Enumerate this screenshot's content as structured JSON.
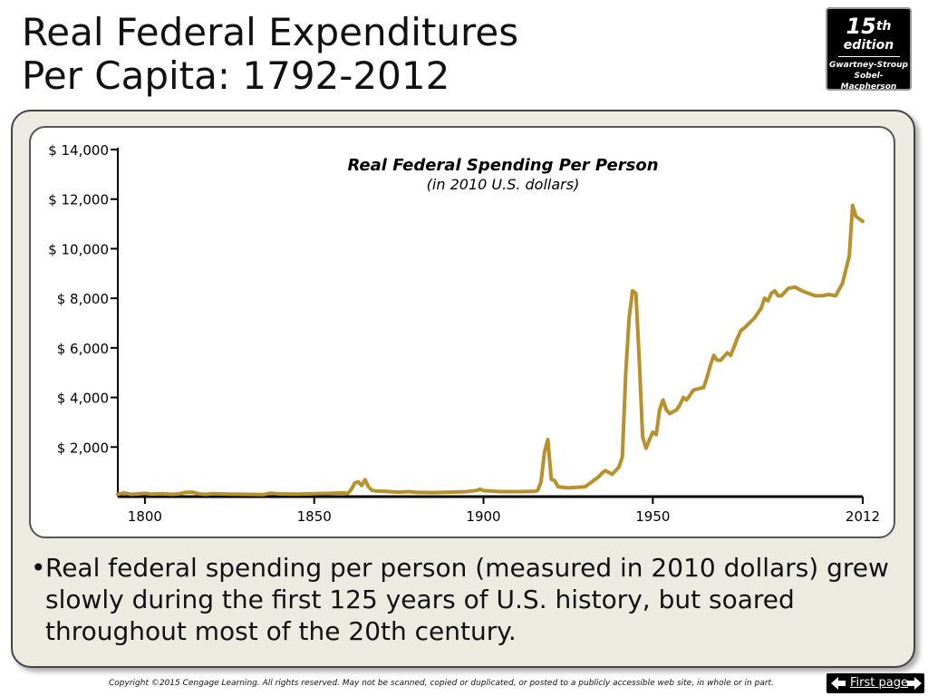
{
  "slide": {
    "title_line1": "Real Federal Expenditures",
    "title_line2": "Per Capita: 1792-2012",
    "bullet_marker": "•",
    "bullet_text": "Real federal spending per person (measured in 2010 dollars) grew slowly during the first 125 years of U.S. history, but soared throughout most of the 20th century.",
    "copyright": "Copyright ©2015 Cengage Learning. All rights reserved. May not be scanned, copied or duplicated, or posted to a publicly accessible web site, in whole or in part.",
    "nav_label": "First page"
  },
  "badge": {
    "number": "15",
    "suffix": "th",
    "edition": "edition",
    "authors_line1": "Gwartney-Stroup",
    "authors_line2": "Sobel-Macpherson"
  },
  "colors": {
    "line": "#b8912c",
    "panel": "#ecebe2",
    "badge": "#000000"
  },
  "chart_data": {
    "type": "line",
    "title": "Real Federal Spending Per Person",
    "subtitle": "(in 2010 U.S. dollars)",
    "xlim": [
      1792,
      2012
    ],
    "ylim": [
      0,
      14000
    ],
    "x_ticks": [
      1800,
      1850,
      1900,
      1950,
      2012
    ],
    "x_tick_labels": [
      "1800",
      "1850",
      "1900",
      "1950",
      "2012"
    ],
    "y_ticks": [
      2000,
      4000,
      6000,
      8000,
      10000,
      12000,
      14000
    ],
    "y_tick_labels": [
      "$ 2,000",
      "$ 4,000",
      "$ 6,000",
      "$ 8,000",
      "$ 10,000",
      "$ 12,000",
      "$ 14,000"
    ],
    "grid": false,
    "legend": "none",
    "series": [
      {
        "points": [
          [
            1792,
            100
          ],
          [
            1794,
            150
          ],
          [
            1796,
            90
          ],
          [
            1798,
            110
          ],
          [
            1800,
            130
          ],
          [
            1802,
            100
          ],
          [
            1805,
            120
          ],
          [
            1808,
            90
          ],
          [
            1810,
            110
          ],
          [
            1812,
            170
          ],
          [
            1814,
            180
          ],
          [
            1816,
            110
          ],
          [
            1818,
            90
          ],
          [
            1820,
            120
          ],
          [
            1825,
            100
          ],
          [
            1830,
            90
          ],
          [
            1835,
            80
          ],
          [
            1837,
            140
          ],
          [
            1840,
            110
          ],
          [
            1845,
            100
          ],
          [
            1850,
            120
          ],
          [
            1855,
            130
          ],
          [
            1858,
            150
          ],
          [
            1860,
            130
          ],
          [
            1861,
            300
          ],
          [
            1862,
            550
          ],
          [
            1863,
            600
          ],
          [
            1864,
            450
          ],
          [
            1865,
            680
          ],
          [
            1866,
            400
          ],
          [
            1867,
            260
          ],
          [
            1868,
            230
          ],
          [
            1870,
            220
          ],
          [
            1875,
            180
          ],
          [
            1878,
            200
          ],
          [
            1880,
            170
          ],
          [
            1885,
            160
          ],
          [
            1890,
            180
          ],
          [
            1895,
            200
          ],
          [
            1898,
            250
          ],
          [
            1899,
            300
          ],
          [
            1900,
            240
          ],
          [
            1905,
            200
          ],
          [
            1910,
            200
          ],
          [
            1915,
            210
          ],
          [
            1916,
            240
          ],
          [
            1917,
            600
          ],
          [
            1918,
            1800
          ],
          [
            1919,
            2300
          ],
          [
            1920,
            700
          ],
          [
            1921,
            650
          ],
          [
            1922,
            400
          ],
          [
            1925,
            350
          ],
          [
            1930,
            400
          ],
          [
            1932,
            600
          ],
          [
            1934,
            800
          ],
          [
            1935,
            950
          ],
          [
            1936,
            1050
          ],
          [
            1938,
            900
          ],
          [
            1940,
            1200
          ],
          [
            1941,
            1600
          ],
          [
            1942,
            5000
          ],
          [
            1943,
            7200
          ],
          [
            1944,
            8300
          ],
          [
            1945,
            8200
          ],
          [
            1946,
            5500
          ],
          [
            1947,
            2400
          ],
          [
            1948,
            1950
          ],
          [
            1949,
            2300
          ],
          [
            1950,
            2600
          ],
          [
            1951,
            2500
          ],
          [
            1952,
            3500
          ],
          [
            1953,
            3900
          ],
          [
            1954,
            3500
          ],
          [
            1955,
            3350
          ],
          [
            1957,
            3500
          ],
          [
            1958,
            3700
          ],
          [
            1959,
            4000
          ],
          [
            1960,
            3900
          ],
          [
            1962,
            4300
          ],
          [
            1965,
            4400
          ],
          [
            1966,
            4800
          ],
          [
            1967,
            5300
          ],
          [
            1968,
            5700
          ],
          [
            1969,
            5500
          ],
          [
            1970,
            5500
          ],
          [
            1972,
            5800
          ],
          [
            1973,
            5700
          ],
          [
            1975,
            6400
          ],
          [
            1976,
            6700
          ],
          [
            1977,
            6800
          ],
          [
            1980,
            7200
          ],
          [
            1982,
            7600
          ],
          [
            1983,
            8000
          ],
          [
            1984,
            7900
          ],
          [
            1985,
            8200
          ],
          [
            1986,
            8300
          ],
          [
            1987,
            8100
          ],
          [
            1988,
            8100
          ],
          [
            1990,
            8400
          ],
          [
            1992,
            8450
          ],
          [
            1994,
            8300
          ],
          [
            1996,
            8200
          ],
          [
            1998,
            8100
          ],
          [
            2000,
            8100
          ],
          [
            2002,
            8150
          ],
          [
            2004,
            8100
          ],
          [
            2006,
            8600
          ],
          [
            2008,
            9700
          ],
          [
            2009,
            11750
          ],
          [
            2010,
            11300
          ],
          [
            2011,
            11200
          ],
          [
            2012,
            11100
          ]
        ]
      }
    ]
  }
}
